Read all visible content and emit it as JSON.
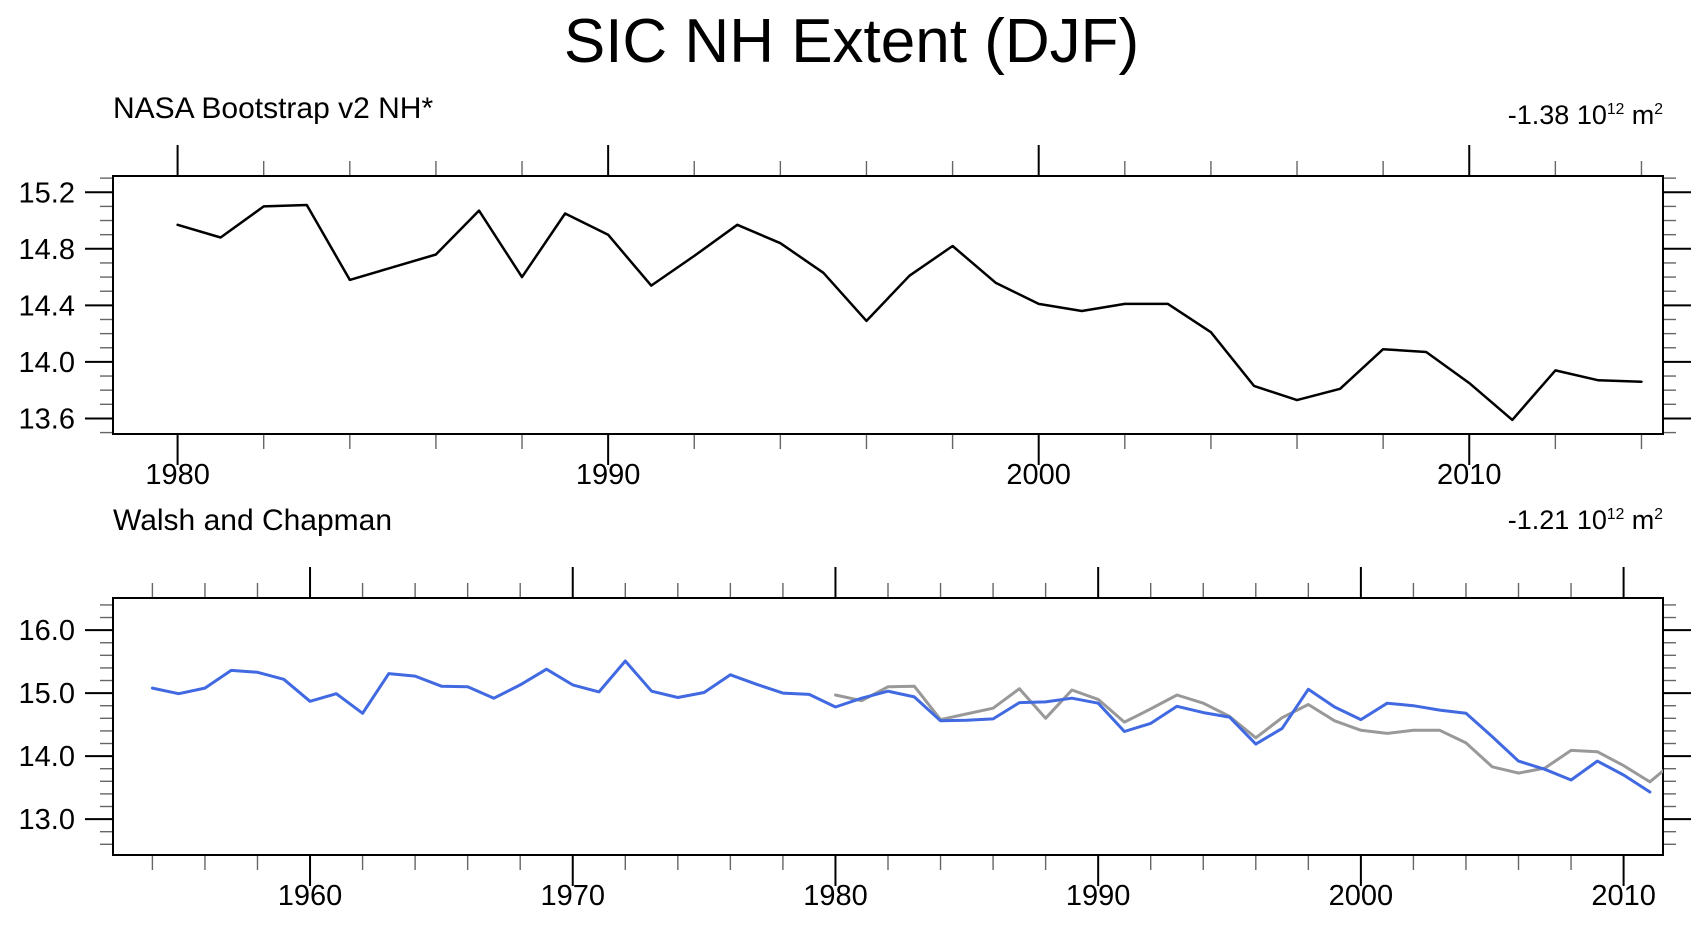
{
  "page": {
    "title": "SIC NH Extent (DJF)",
    "background": "#ffffff"
  },
  "chart_data": [
    {
      "type": "line",
      "panel": "top",
      "title": "NASA Bootstrap v2 NH*",
      "trend_label": {
        "text": "-1.38 10",
        "exponent": "12",
        "unit": " m",
        "unit_exponent": "2"
      },
      "xlabel": "",
      "ylabel": "",
      "xlim": [
        1978.5,
        2014.5
      ],
      "ylim": [
        13.49,
        15.315
      ],
      "x_major_ticks": [
        1980,
        1990,
        2000,
        2010
      ],
      "x_minor_step": 2,
      "y_major_ticks": [
        13.6,
        14.0,
        14.4,
        14.8,
        15.2
      ],
      "y_minor_step": 0.1,
      "grid": false,
      "tick_style": "outward-all-sides",
      "series": [
        {
          "name": "NASA Bootstrap v2 NH",
          "color": "#000000",
          "width": 2.5,
          "x_start": 1980,
          "x_step": 1,
          "values": [
            14.97,
            14.88,
            15.1,
            15.11,
            14.58,
            14.67,
            14.76,
            15.07,
            14.6,
            15.05,
            14.9,
            14.54,
            14.75,
            14.97,
            14.84,
            14.63,
            14.29,
            14.61,
            14.82,
            14.56,
            14.41,
            14.36,
            14.41,
            14.41,
            14.21,
            13.83,
            13.73,
            13.81,
            14.09,
            14.07,
            13.85,
            13.59,
            13.94,
            13.87,
            13.86
          ]
        }
      ]
    },
    {
      "type": "line",
      "panel": "bottom",
      "title": "Walsh and Chapman",
      "trend_label": {
        "text": "-1.21 10",
        "exponent": "12",
        "unit": " m",
        "unit_exponent": "2"
      },
      "xlabel": "",
      "ylabel": "",
      "xlim": [
        1952.5,
        2011.5
      ],
      "ylim": [
        12.43,
        16.51
      ],
      "x_major_ticks": [
        1960,
        1970,
        1980,
        1990,
        2000,
        2010
      ],
      "x_minor_step": 2,
      "y_major_ticks": [
        13.0,
        14.0,
        15.0,
        16.0
      ],
      "y_minor_step": 0.2,
      "grid": false,
      "tick_style": "outward-all-sides",
      "series": [
        {
          "name": "NASA Bootstrap v2 NH overlay",
          "color": "#999999",
          "width": 3,
          "x_start": 1980,
          "x_step": 1,
          "values": [
            14.97,
            14.88,
            15.1,
            15.11,
            14.58,
            14.67,
            14.76,
            15.07,
            14.6,
            15.05,
            14.9,
            14.54,
            14.75,
            14.97,
            14.84,
            14.63,
            14.29,
            14.61,
            14.82,
            14.56,
            14.41,
            14.36,
            14.41,
            14.41,
            14.21,
            13.83,
            13.73,
            13.81,
            14.09,
            14.07,
            13.85,
            13.59,
            13.94
          ]
        },
        {
          "name": "Walsh and Chapman",
          "color": "#4169E1",
          "width": 3,
          "x_start": 1954,
          "x_step": 1,
          "values": [
            15.08,
            14.99,
            15.08,
            15.36,
            15.33,
            15.22,
            14.87,
            14.99,
            14.68,
            15.31,
            15.27,
            15.11,
            15.1,
            14.92,
            15.13,
            15.38,
            15.13,
            15.02,
            15.51,
            15.03,
            14.93,
            15.01,
            15.29,
            15.14,
            15.0,
            14.98,
            14.78,
            14.92,
            15.03,
            14.94,
            14.56,
            14.57,
            14.59,
            14.85,
            14.86,
            14.92,
            14.84,
            14.39,
            14.52,
            14.79,
            14.69,
            14.62,
            14.19,
            14.44,
            15.06,
            14.78,
            14.58,
            14.84,
            14.8,
            14.73,
            14.68,
            14.31,
            13.92,
            13.79,
            13.62,
            13.92,
            13.7,
            13.43
          ]
        }
      ]
    }
  ]
}
